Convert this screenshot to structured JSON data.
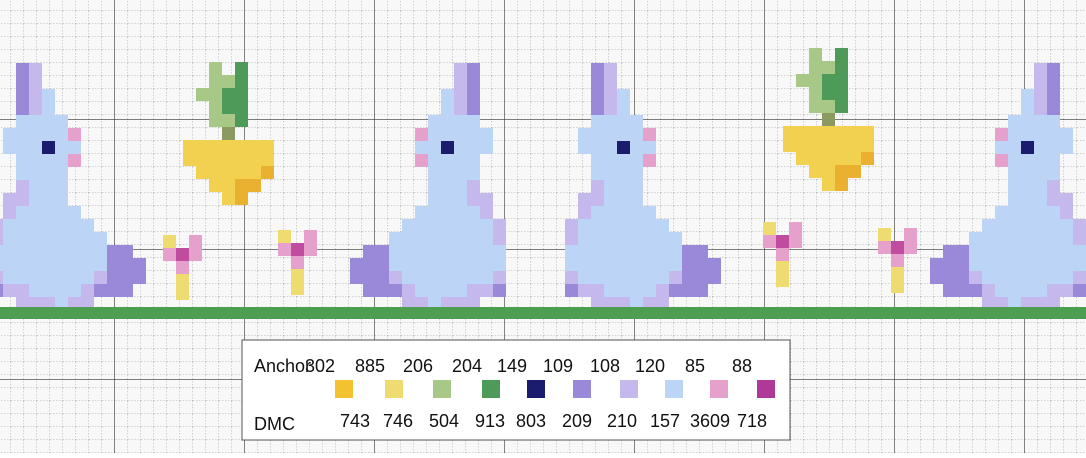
{
  "legend": {
    "anchor_label": "Anchor",
    "dmc_label": "DMC",
    "entries": [
      {
        "anchor": "302",
        "dmc": "743",
        "color": "#f2c230"
      },
      {
        "anchor": "885",
        "dmc": "746",
        "color": "#eedc70"
      },
      {
        "anchor": "206",
        "dmc": "504",
        "color": "#a8c888"
      },
      {
        "anchor": "204",
        "dmc": "913",
        "color": "#4e9a58"
      },
      {
        "anchor": "149",
        "dmc": "803",
        "color": "#1c1c6e"
      },
      {
        "anchor": "109",
        "dmc": "209",
        "color": "#9a88d8"
      },
      {
        "anchor": "108",
        "dmc": "210",
        "color": "#c4b8ec"
      },
      {
        "anchor": "120",
        "dmc": "157",
        "color": "#bcd4f6"
      },
      {
        "anchor": "85",
        "dmc": "3609",
        "color": "#e6a0cc"
      },
      {
        "anchor": "88",
        "dmc": "718",
        "color": "#b03898"
      }
    ]
  }
}
